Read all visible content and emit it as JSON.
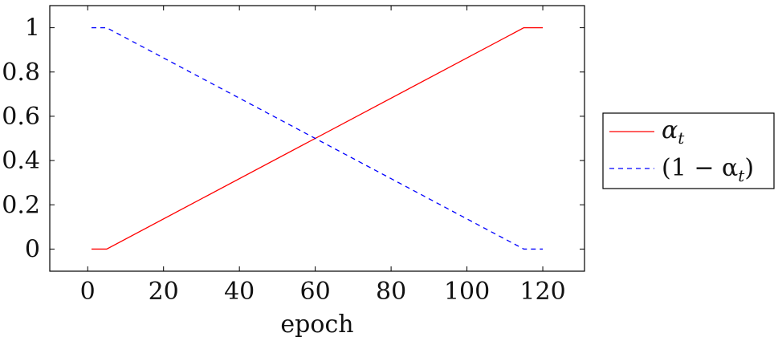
{
  "chart_data": {
    "type": "line",
    "title": "",
    "xlabel": "epoch",
    "ylabel": "",
    "xlim": [
      -10,
      131
    ],
    "ylim": [
      -0.1,
      1.1
    ],
    "xticks": [
      0,
      20,
      40,
      60,
      80,
      100,
      120
    ],
    "yticks": [
      0,
      0.2,
      0.4,
      0.6,
      0.8,
      1
    ],
    "xtick_labels": [
      "0",
      "20",
      "40",
      "60",
      "80",
      "100",
      "120"
    ],
    "ytick_labels": [
      "0",
      "0.2",
      "0.4",
      "0.6",
      "0.8",
      "1"
    ],
    "grid": false,
    "legend_position": "outside-right",
    "series": [
      {
        "name": "α_t",
        "legend_main": "α",
        "legend_sub": "t",
        "color": "#ff0000",
        "style": "solid",
        "x": [
          1,
          5,
          115,
          120
        ],
        "y": [
          0,
          0,
          1,
          1
        ]
      },
      {
        "name": "(1 − α_t)",
        "legend_main": "(1 − α",
        "legend_sub": "t",
        "legend_tail": ")",
        "color": "#0000ff",
        "style": "dashed",
        "x": [
          1,
          5,
          115,
          120
        ],
        "y": [
          1,
          1,
          0,
          0
        ]
      }
    ]
  }
}
